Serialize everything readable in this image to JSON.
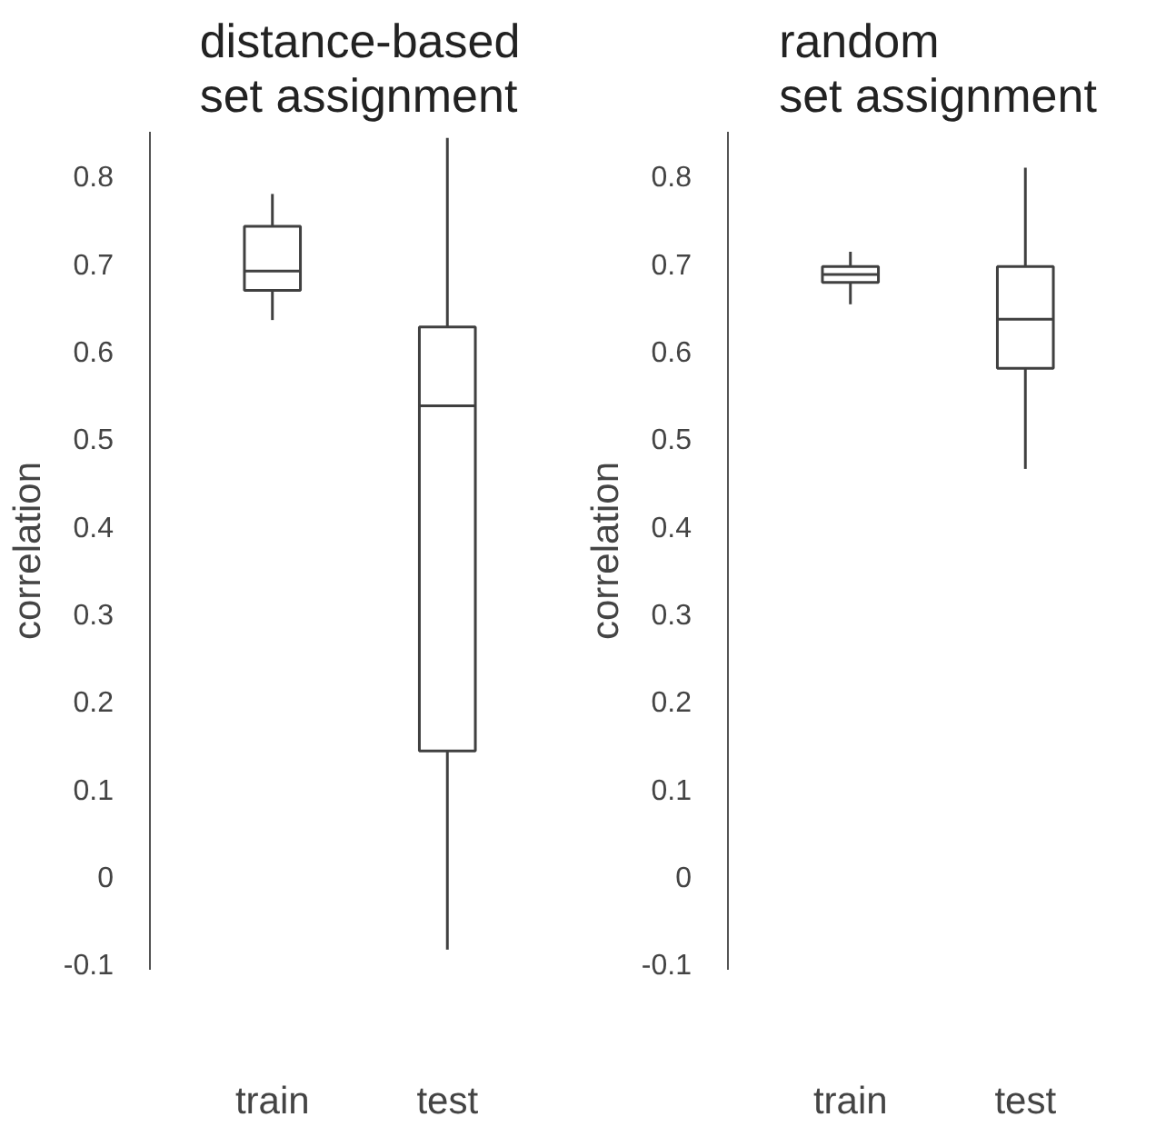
{
  "chart_data": [
    {
      "type": "box",
      "title": "distance-based\nset assignment",
      "ylabel": "correlation",
      "categories": [
        "train",
        "test"
      ],
      "color": "#404040",
      "grid": false,
      "ylim": [
        -0.107,
        0.85
      ],
      "yticks": [
        -0.1,
        0,
        0.1,
        0.2,
        0.3,
        0.4,
        0.5,
        0.6,
        0.7,
        0.8
      ],
      "boxes": [
        {
          "low": 0.635,
          "q1": 0.669,
          "median": 0.691,
          "q3": 0.742,
          "high": 0.779
        },
        {
          "low": -0.084,
          "q1": 0.143,
          "median": 0.537,
          "q3": 0.627,
          "high": 0.843
        }
      ]
    },
    {
      "type": "box",
      "title": "random\nset assignment",
      "ylabel": "correlation",
      "categories": [
        "train",
        "test"
      ],
      "color": "#404040",
      "grid": false,
      "ylim": [
        -0.107,
        0.85
      ],
      "yticks": [
        -0.1,
        0,
        0.1,
        0.2,
        0.3,
        0.4,
        0.5,
        0.6,
        0.7,
        0.8
      ],
      "boxes": [
        {
          "low": 0.653,
          "q1": 0.678,
          "median": 0.687,
          "q3": 0.696,
          "high": 0.713
        },
        {
          "low": 0.465,
          "q1": 0.58,
          "median": 0.636,
          "q3": 0.696,
          "high": 0.809
        }
      ]
    }
  ]
}
